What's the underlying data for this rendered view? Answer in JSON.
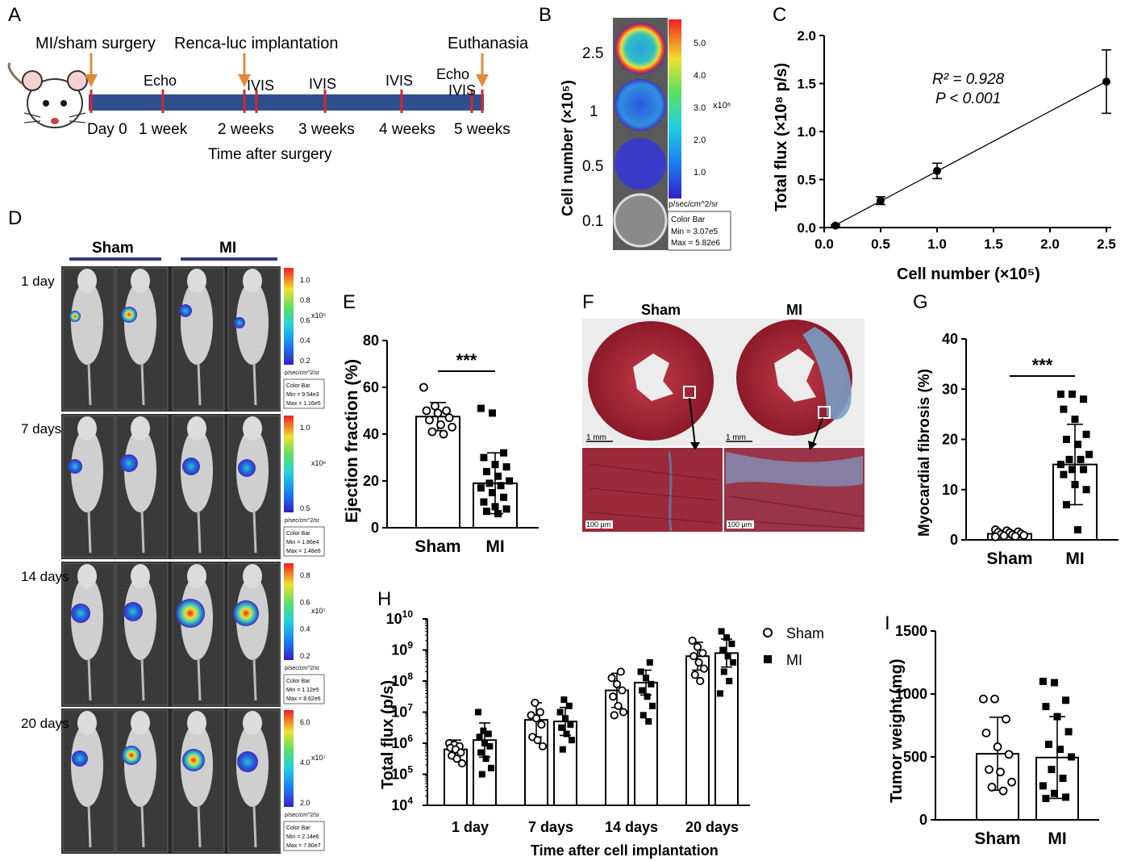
{
  "panel_labels": {
    "a": "A",
    "b": "B",
    "c": "C",
    "d": "D",
    "e": "E",
    "f": "F",
    "g": "G",
    "h": "H",
    "i": "I"
  },
  "timeline": {
    "events_top": [
      "MI/sham surgery",
      "Renca-luc implantation",
      "Euthanasia"
    ],
    "markers": [
      "Echo",
      "IVIS",
      "IVIS",
      "IVIS",
      "Echo",
      "IVIS"
    ],
    "ticks": [
      "Day 0",
      "1 week",
      "2 weeks",
      "3 weeks",
      "4 weeks",
      "5 weeks"
    ],
    "axis_title": "Time after surgery",
    "arrow_color": "#e08a3c",
    "bar_color": "#2f4f8f",
    "tick_color": "#d4282c"
  },
  "panel_b": {
    "ylabel": "Cell number (×10⁵)",
    "rows": [
      "2.5",
      "1",
      "0.5",
      "0.1"
    ],
    "scale_ticks": [
      "5.0",
      "4.0",
      "3.0",
      "2.0",
      "1.0"
    ],
    "scale_exp": "x10⁶",
    "scale_unit": "p/sec/cm^2/sr",
    "colorbar_title": "Color Bar",
    "colorbar_min": "Min = 3.07e5",
    "colorbar_max": "Max = 5.82e6"
  },
  "panel_d": {
    "group_sham": "Sham",
    "group_mi": "MI",
    "rows": [
      {
        "day": "1 day",
        "ticks": [
          "1.0",
          "0.8",
          "0.6",
          "0.4",
          "0.2"
        ],
        "exp": "x10⁵",
        "min": "Min = 9.54e3",
        "max": "Max = 1.16e5"
      },
      {
        "day": "7 days",
        "ticks": [
          "1.0",
          "0.5"
        ],
        "exp": "x10⁶",
        "min": "Min = 1.86e4",
        "max": "Max = 1.48e6"
      },
      {
        "day": "14 days",
        "ticks": [
          "0.8",
          "0.6",
          "0.4",
          "0.2"
        ],
        "exp": "x10⁷",
        "min": "Min = 1.12e5",
        "max": "Max = 8.62e6"
      },
      {
        "day": "20 days",
        "ticks": [
          "6.0",
          "4.0",
          "2.0"
        ],
        "exp": "x10⁷",
        "min": "Min = 2.14e6",
        "max": "Max = 7.80e7"
      }
    ],
    "unit": "p/sec/cm^2/sr",
    "colorbar_title": "Color Bar"
  },
  "panel_f": {
    "sham": "Sham",
    "mi": "MI",
    "scale_top": "1 mm",
    "scale_bottom": "100 μm"
  },
  "chart_data": [
    {
      "id": "C",
      "type": "scatter",
      "xlabel": "Cell number (×10⁵)",
      "ylabel": "Total flux (×10⁸ p/s)",
      "x": [
        0.1,
        0.5,
        1.0,
        2.5
      ],
      "y": [
        0.02,
        0.28,
        0.59,
        1.52
      ],
      "err": [
        0.01,
        0.04,
        0.08,
        0.33
      ],
      "xlim": [
        0,
        2.5
      ],
      "ylim": [
        0,
        2.0
      ],
      "xticks": [
        "0.0",
        "0.5",
        "1.0",
        "1.5",
        "2.0",
        "2.5"
      ],
      "yticks": [
        "0.0",
        "0.5",
        "1.0",
        "1.5",
        "2.0"
      ],
      "fit_line": true,
      "annotation_r2": "R² = 0.928",
      "annotation_p": "P < 0.001"
    },
    {
      "id": "E",
      "type": "bar",
      "categories": [
        "Sham",
        "MI"
      ],
      "values": [
        47.5,
        19
      ],
      "sd": [
        6,
        13
      ],
      "ylabel": "Ejection fraction (%)",
      "ylim": [
        0,
        80
      ],
      "yticks": [
        "0",
        "20",
        "40",
        "60",
        "80"
      ],
      "significance": "***",
      "points": [
        [
          60,
          52,
          50,
          50,
          49,
          47,
          46,
          44,
          43,
          41,
          40
        ],
        [
          51,
          49,
          32,
          30,
          27,
          26,
          24,
          22,
          20,
          19,
          18,
          17,
          15,
          13,
          11,
          9,
          8,
          7,
          6
        ]
      ]
    },
    {
      "id": "G",
      "type": "bar",
      "categories": [
        "Sham",
        "MI"
      ],
      "values": [
        1.2,
        15
      ],
      "sd": [
        0.6,
        8
      ],
      "ylabel": "Myocardial fibrosis (%)",
      "ylim": [
        0,
        40
      ],
      "yticks": [
        "0",
        "10",
        "20",
        "30",
        "40"
      ],
      "significance": "***",
      "points": [
        [
          2.0,
          1.8,
          1.6,
          1.5,
          1.4,
          1.2,
          1.1,
          1.0,
          0.9,
          0.8,
          0.7,
          0.6
        ],
        [
          29,
          29,
          28,
          26,
          24,
          21,
          20,
          19,
          17,
          16,
          16,
          15,
          14,
          14,
          13,
          11,
          10,
          7,
          2
        ]
      ]
    },
    {
      "id": "H",
      "type": "bar",
      "categories": [
        "1 day",
        "7 days",
        "14 days",
        "20 days"
      ],
      "xlabel": "Time after cell implantation",
      "ylabel": "Total flux (p/s)",
      "yscale": "log",
      "ylim": [
        4,
        10
      ],
      "ytick_exps": [
        4,
        5,
        6,
        7,
        8,
        9,
        10
      ],
      "series": [
        {
          "name": "Sham",
          "marker": "circle",
          "log_values": [
            5.8,
            6.75,
            7.7,
            8.8
          ],
          "log_sd": [
            0.3,
            0.55,
            0.55,
            0.45
          ],
          "points": [
            [
              6.0,
              5.95,
              5.9,
              5.85,
              5.8,
              5.7,
              5.6,
              5.5,
              5.35
            ],
            [
              7.3,
              7.0,
              6.9,
              6.8,
              6.6,
              6.2,
              6.1,
              5.9
            ],
            [
              8.3,
              8.1,
              7.9,
              7.7,
              7.5,
              7.2,
              7.0,
              6.9
            ],
            [
              9.3,
              9.1,
              8.9,
              8.8,
              8.6,
              8.4,
              8.2,
              8.0
            ]
          ]
        },
        {
          "name": "MI",
          "marker": "square",
          "log_values": [
            6.1,
            6.7,
            7.95,
            8.9
          ],
          "log_sd": [
            0.55,
            0.45,
            0.4,
            0.45
          ],
          "points": [
            [
              7.0,
              6.4,
              6.3,
              6.2,
              6.0,
              5.9,
              5.7,
              5.5,
              5.2,
              5.0
            ],
            [
              7.4,
              7.2,
              7.0,
              6.8,
              6.6,
              6.5,
              6.3,
              6.1,
              5.8
            ],
            [
              8.6,
              8.3,
              8.1,
              7.9,
              7.7,
              7.5,
              7.2,
              6.9,
              6.7
            ],
            [
              9.6,
              9.4,
              9.2,
              9.0,
              8.8,
              8.6,
              8.3,
              8.0,
              7.6
            ]
          ]
        }
      ]
    },
    {
      "id": "I",
      "type": "bar",
      "categories": [
        "Sham",
        "MI"
      ],
      "values": [
        525,
        495
      ],
      "sd": [
        290,
        325
      ],
      "ylabel": "Tumor weight (mg)",
      "ylim": [
        0,
        1500
      ],
      "yticks": [
        "0",
        "500",
        "1000",
        "1500"
      ],
      "points": [
        [
          960,
          960,
          800,
          690,
          580,
          520,
          400,
          380,
          300,
          260,
          230
        ],
        [
          1100,
          1090,
          950,
          900,
          820,
          700,
          600,
          560,
          500,
          400,
          330,
          270,
          210,
          180,
          170
        ]
      ]
    }
  ]
}
